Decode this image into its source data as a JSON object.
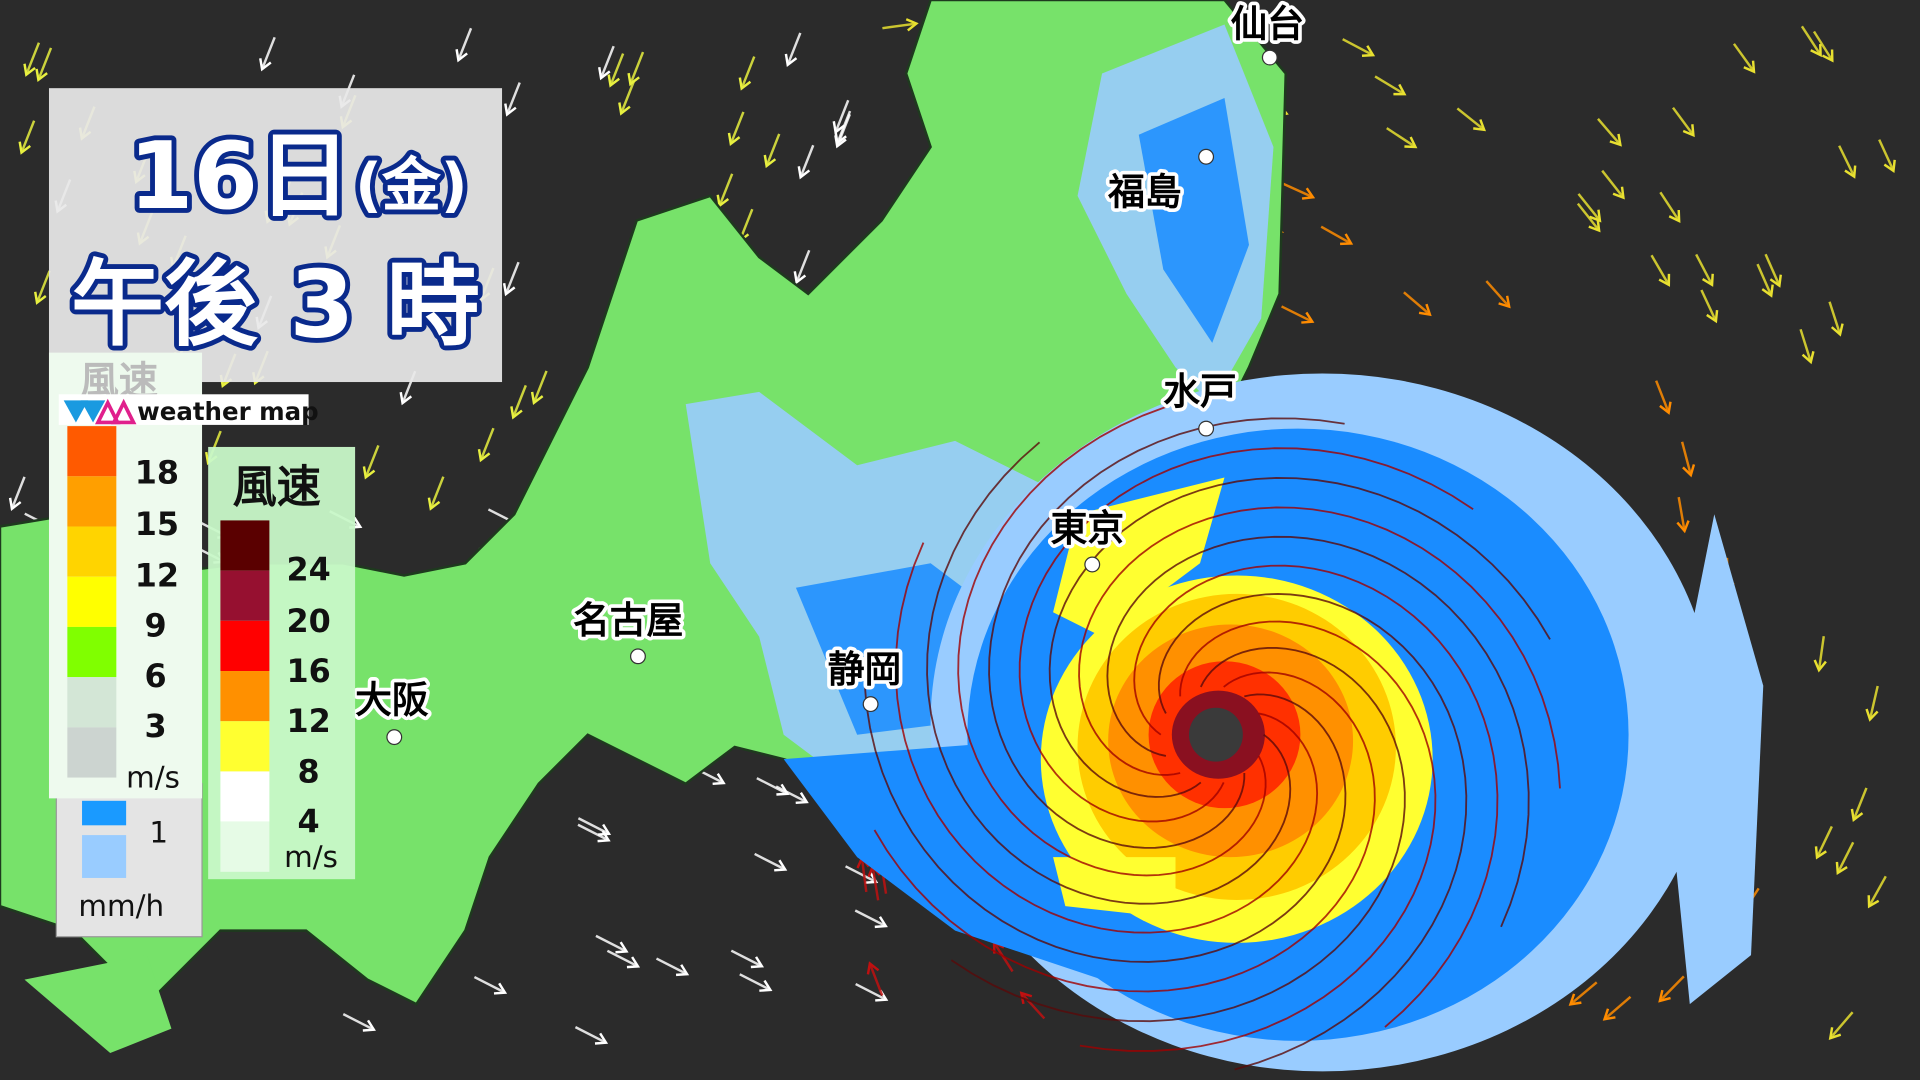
{
  "time_panel": {
    "day": "16日",
    "weekday": "(金)",
    "time": "午後 3 時"
  },
  "logo": {
    "text": "weather map",
    "colors": [
      "#1a9ae0",
      "#e0208c"
    ]
  },
  "legend_faded_title": "風速",
  "rain_wind_legend": {
    "unit": "m/s",
    "labels": [
      "18",
      "15",
      "12",
      "9",
      "6",
      "3"
    ],
    "colors": [
      "#ff5a00",
      "#ff9f00",
      "#ffd400",
      "#ffff00",
      "#80ff00",
      "#d3e6d6",
      "#ccd4d0"
    ]
  },
  "rain_legend": {
    "label": "1",
    "unit": "mm/h",
    "colors": [
      "#1a9aff",
      "#99ccff"
    ]
  },
  "wind_legend": {
    "title": "風速",
    "unit": "m/s",
    "labels": [
      "24",
      "20",
      "16",
      "12",
      "8",
      "4"
    ],
    "colors": [
      "#5a0000",
      "#961030",
      "#ff0000",
      "#ff9000",
      "#ffff30",
      "#ffffff",
      "#e6fbe6"
    ]
  },
  "cities": [
    {
      "name": "仙台"
    },
    {
      "name": "福島"
    },
    {
      "name": "水戸"
    },
    {
      "name": "東京"
    },
    {
      "name": "名古屋"
    },
    {
      "name": "静岡"
    },
    {
      "name": "大阪"
    }
  ],
  "colors": {
    "sea": "#2b2b2b",
    "land": "#77e26a",
    "rain_light": "#99ccff",
    "rain": "#1a8cff"
  }
}
